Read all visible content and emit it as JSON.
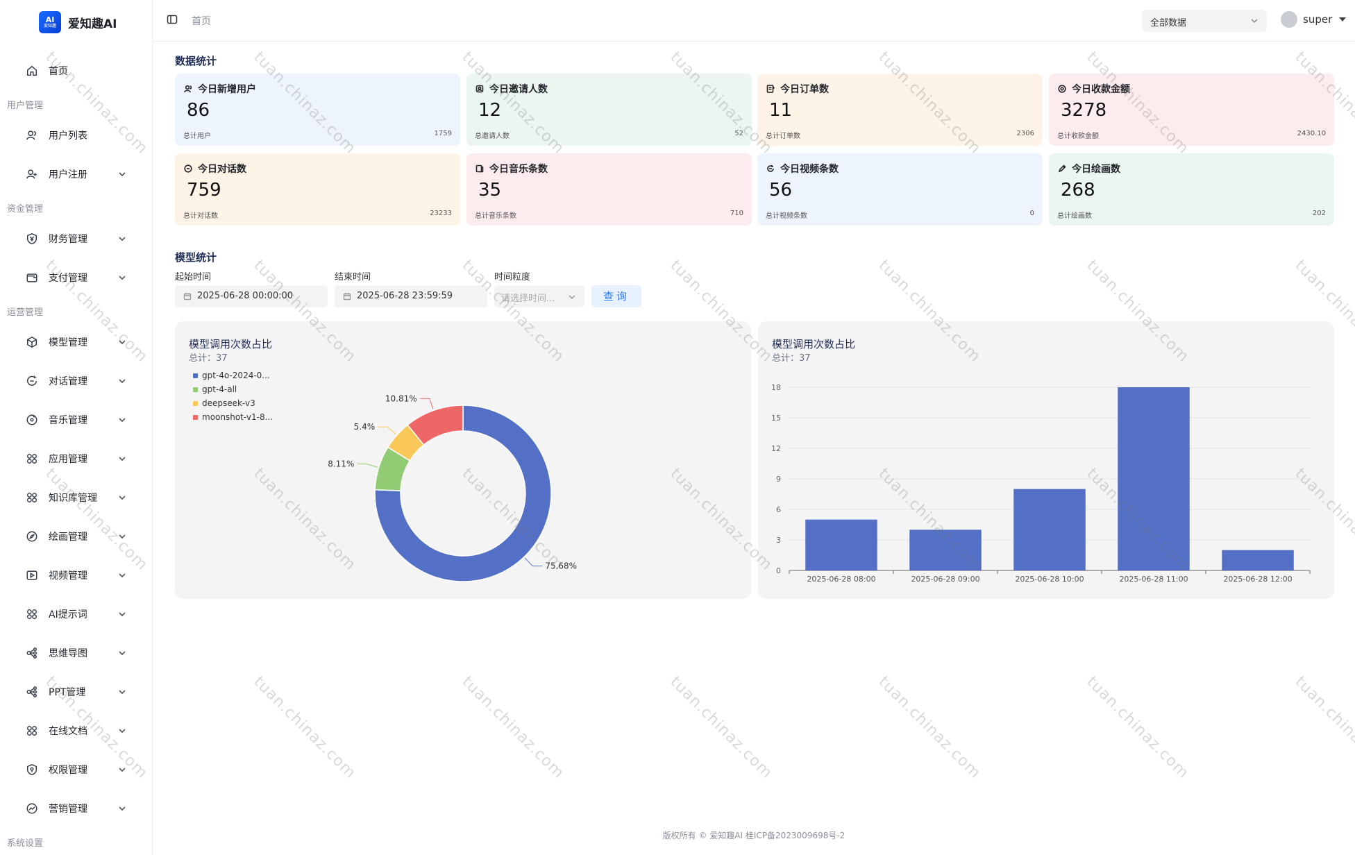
{
  "app": {
    "logo_badge": "AI",
    "logo_badge_sub": "爱知趣",
    "name": "爱知趣AI"
  },
  "sidebar": {
    "home": "首页",
    "groups": {
      "user": "用户管理",
      "fund": "资金管理",
      "ops": "运营管理",
      "sys": "系统设置"
    },
    "items": [
      "用户列表",
      "用户注册",
      "财务管理",
      "支付管理",
      "模型管理",
      "对话管理",
      "音乐管理",
      "应用管理",
      "知识库管理",
      "绘画管理",
      "视频管理",
      "AI提示词",
      "思维导图",
      "PPT管理",
      "在线文档",
      "权限管理",
      "营销管理"
    ]
  },
  "topbar": {
    "breadcrumb": "首页",
    "scope_select": "全部数据",
    "username": "super"
  },
  "stats": {
    "title": "数据统计",
    "cards": [
      {
        "label": "今日新增用户",
        "value": "86",
        "sub": "总计用户",
        "total": "1759",
        "bg": "#eef4fd",
        "icon": "user-icon"
      },
      {
        "label": "今日邀请人数",
        "value": "12",
        "sub": "总邀请人数",
        "total": "52",
        "bg": "#eaf6ef",
        "icon": "invite-icon"
      },
      {
        "label": "今日订单数",
        "value": "11",
        "sub": "总计订单数",
        "total": "2306",
        "bg": "#fdf3e6",
        "icon": "order-icon"
      },
      {
        "label": "今日收款金额",
        "value": "3278",
        "sub": "总计收款金额",
        "total": "2430.10",
        "bg": "#fdecee",
        "icon": "money-icon"
      },
      {
        "label": "今日对话数",
        "value": "759",
        "sub": "总计对话数",
        "total": "23233",
        "bg": "#fdf3e6",
        "icon": "chat-icon"
      },
      {
        "label": "今日音乐条数",
        "value": "35",
        "sub": "总计音乐条数",
        "total": "710",
        "bg": "#fdecee",
        "icon": "music-icon"
      },
      {
        "label": "今日视频条数",
        "value": "56",
        "sub": "总计视频条数",
        "total": "0",
        "bg": "#eef4fd",
        "icon": "video-icon"
      },
      {
        "label": "今日绘画数",
        "value": "268",
        "sub": "总计绘画数",
        "total": "202",
        "bg": "#eaf6ef",
        "icon": "paint-icon"
      }
    ]
  },
  "model_stats": {
    "title": "模型统计",
    "start_label": "起始时间",
    "start_value": "2025-06-28 00:00:00",
    "end_label": "结束时间",
    "end_value": "2025-06-28 23:59:59",
    "gran_label": "时间粒度",
    "gran_placeholder": "请选择时间...",
    "query_button": "查询"
  },
  "footer": {
    "text": "版权所有 © 爱知趣AI 桂ICP备2023009698号-2"
  },
  "watermark": "tuan.chinaz.com",
  "chart_data": [
    {
      "type": "pie",
      "title": "模型调用次数占比",
      "subtitle": "总计：37",
      "legend_position": "top-left",
      "categories": [
        "gpt-4o-2024-0...",
        "gpt-4-all",
        "deepseek-v3",
        "moonshot-v1-8..."
      ],
      "values": [
        28,
        3,
        2,
        4
      ],
      "percent_labels": [
        "75.68%",
        "8.11%",
        "5.4%",
        "10.81%"
      ],
      "colors": [
        "#5470c6",
        "#91cc75",
        "#fac858",
        "#ee6666"
      ]
    },
    {
      "type": "bar",
      "title": "模型调用次数占比",
      "subtitle": "总计：37",
      "categories": [
        "2025-06-28 08:00",
        "2025-06-28 09:00",
        "2025-06-28 10:00",
        "2025-06-28 11:00",
        "2025-06-28 12:00"
      ],
      "values": [
        5,
        4,
        8,
        18,
        2
      ],
      "ylim": [
        0,
        18
      ],
      "yticks": [
        0,
        3,
        6,
        9,
        12,
        15,
        18
      ],
      "grid": true,
      "color": "#5470c6"
    }
  ]
}
